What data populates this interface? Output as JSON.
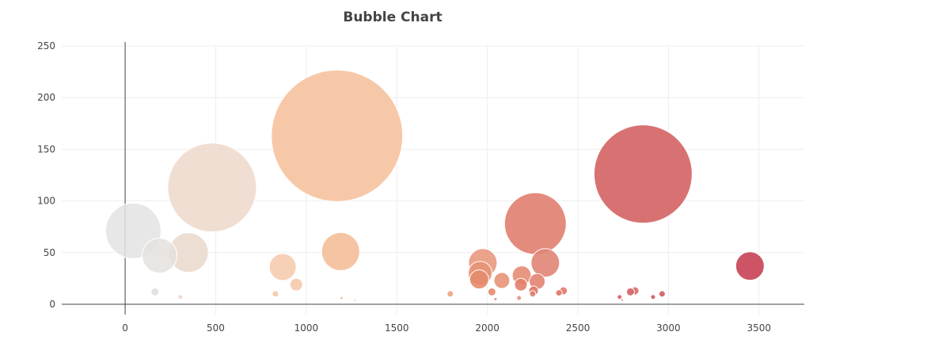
{
  "chart_data": {
    "type": "scatter",
    "subtype": "bubble",
    "title": "Bubble Chart",
    "xlabel": "",
    "ylabel": "",
    "xlim": [
      -350,
      3750
    ],
    "ylim": [
      -10,
      250
    ],
    "x_ticks": [
      0,
      500,
      1000,
      1500,
      2000,
      2500,
      3000,
      3500
    ],
    "y_ticks": [
      0,
      50,
      100,
      150,
      200,
      250
    ],
    "grid": true,
    "legend": "none",
    "colorscale": [
      "#e5e5e5",
      "#f6c6a3",
      "#e58e7c",
      "#cf4a5c"
    ],
    "points": [
      {
        "x": 45,
        "y": 71,
        "r": 35,
        "color": "#e3e3e3",
        "opacity": 0.85
      },
      {
        "x": 190,
        "y": 47,
        "r": 22,
        "color": "#e5e0de",
        "opacity": 0.85
      },
      {
        "x": 350,
        "y": 50,
        "r": 25,
        "color": "#ead8cc",
        "opacity": 0.85
      },
      {
        "x": 480,
        "y": 113,
        "r": 56,
        "color": "#efd8ca",
        "opacity": 0.85
      },
      {
        "x": 165,
        "y": 12,
        "r": 5,
        "color": "#e0dcda",
        "opacity": 0.85
      },
      {
        "x": 305,
        "y": 7,
        "r": 3,
        "color": "#ebd6c9",
        "opacity": 0.85
      },
      {
        "x": 870,
        "y": 36,
        "r": 17,
        "color": "#f5c9aa",
        "opacity": 0.85
      },
      {
        "x": 945,
        "y": 19,
        "r": 8,
        "color": "#f5c5a6",
        "opacity": 0.85
      },
      {
        "x": 830,
        "y": 10,
        "r": 4,
        "color": "#f4c4a2",
        "opacity": 0.85
      },
      {
        "x": 1170,
        "y": 163,
        "r": 83,
        "color": "#f6c29f",
        "opacity": 0.9
      },
      {
        "x": 1190,
        "y": 51,
        "r": 24,
        "color": "#f4be98",
        "opacity": 0.9
      },
      {
        "x": 1195,
        "y": 6,
        "r": 2,
        "color": "#f1b896",
        "opacity": 0.85
      },
      {
        "x": 1270,
        "y": 4,
        "r": 1.5,
        "color": "#f2bd9a",
        "opacity": 0.85
      },
      {
        "x": 1795,
        "y": 10,
        "r": 4,
        "color": "#eea37f",
        "opacity": 0.9
      },
      {
        "x": 1975,
        "y": 40,
        "r": 18,
        "color": "#e9997f",
        "opacity": 0.9
      },
      {
        "x": 1960,
        "y": 30,
        "r": 15,
        "color": "#e89474",
        "opacity": 0.9
      },
      {
        "x": 1955,
        "y": 24,
        "r": 12,
        "color": "#e68a6b",
        "opacity": 0.9
      },
      {
        "x": 2080,
        "y": 23,
        "r": 10,
        "color": "#e79478",
        "opacity": 0.9
      },
      {
        "x": 2025,
        "y": 12,
        "r": 5,
        "color": "#e58a6d",
        "opacity": 0.9
      },
      {
        "x": 2045,
        "y": 5,
        "r": 2,
        "color": "#e38468",
        "opacity": 0.85
      },
      {
        "x": 2190,
        "y": 28,
        "r": 12,
        "color": "#e68d74",
        "opacity": 0.9
      },
      {
        "x": 2185,
        "y": 19,
        "r": 8,
        "color": "#e2806a",
        "opacity": 0.9
      },
      {
        "x": 2175,
        "y": 6,
        "r": 3,
        "color": "#e48a6f",
        "opacity": 0.85
      },
      {
        "x": 2265,
        "y": 78,
        "r": 39,
        "color": "#e0806f",
        "opacity": 0.9
      },
      {
        "x": 2320,
        "y": 40,
        "r": 18,
        "color": "#e08574",
        "opacity": 0.9
      },
      {
        "x": 2275,
        "y": 22,
        "r": 10,
        "color": "#e28370",
        "opacity": 0.9
      },
      {
        "x": 2255,
        "y": 13,
        "r": 6,
        "color": "#dd7565",
        "opacity": 0.9
      },
      {
        "x": 2250,
        "y": 10,
        "r": 4,
        "color": "#e1806b",
        "opacity": 0.85
      },
      {
        "x": 2420,
        "y": 13,
        "r": 5,
        "color": "#e07a6b",
        "opacity": 0.9
      },
      {
        "x": 2395,
        "y": 11,
        "r": 4,
        "color": "#dd7568",
        "opacity": 0.9
      },
      {
        "x": 2860,
        "y": 126,
        "r": 62,
        "color": "#d46363",
        "opacity": 0.9
      },
      {
        "x": 2815,
        "y": 13,
        "r": 5,
        "color": "#d76a68",
        "opacity": 0.9
      },
      {
        "x": 2790,
        "y": 12,
        "r": 5,
        "color": "#d46264",
        "opacity": 0.9
      },
      {
        "x": 2730,
        "y": 7,
        "r": 3,
        "color": "#d55f64",
        "opacity": 0.9
      },
      {
        "x": 2745,
        "y": 4,
        "r": 1.5,
        "color": "#d45b62",
        "opacity": 0.85
      },
      {
        "x": 2965,
        "y": 10,
        "r": 4,
        "color": "#d25a62",
        "opacity": 0.9
      },
      {
        "x": 2915,
        "y": 7,
        "r": 3,
        "color": "#d05460",
        "opacity": 0.9
      },
      {
        "x": 3450,
        "y": 37,
        "r": 18,
        "color": "#c94558",
        "opacity": 0.92
      }
    ]
  }
}
